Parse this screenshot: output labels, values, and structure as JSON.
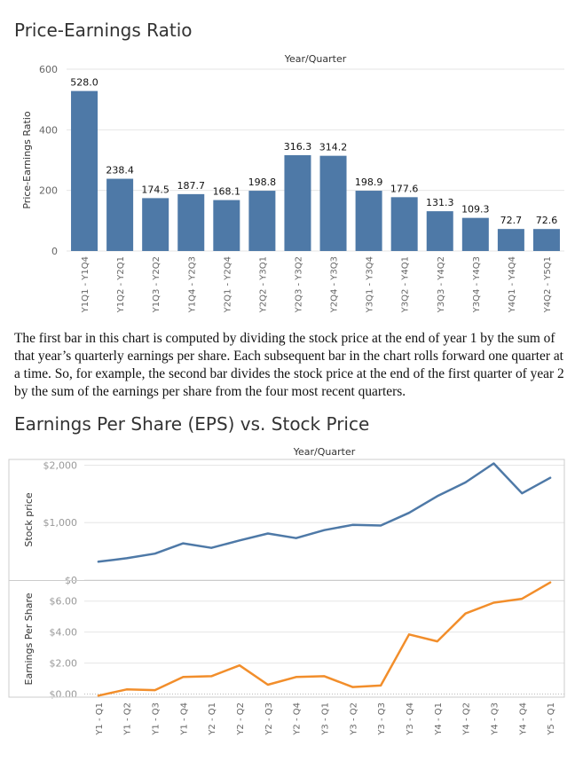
{
  "chart_data": [
    {
      "type": "bar",
      "title": "Price-Earnings Ratio",
      "xlabel": "Year/Quarter",
      "ylabel": "Price-Earnings Ratio",
      "ylim": [
        0,
        600
      ],
      "yticks": [
        "0",
        "200",
        "400",
        "600"
      ],
      "ytick_values": [
        0,
        200,
        400,
        600
      ],
      "grid": true,
      "bar_color": "#4e79a7",
      "categories": [
        "Y1Q1 - Y1Q4",
        "Y1Q2 - Y2Q1",
        "Y1Q3 - Y2Q2",
        "Y1Q4 - Y2Q3",
        "Y2Q1 - Y2Q4",
        "Y2Q2 - Y3Q1",
        "Y2Q3 - Y3Q2",
        "Y2Q4 - Y3Q3",
        "Y3Q1 - Y3Q4",
        "Y3Q2 - Y4Q1",
        "Y3Q3 - Y4Q2",
        "Y3Q4 - Y4Q3",
        "Y4Q1 - Y4Q4",
        "Y4Q2 - Y5Q1"
      ],
      "values": [
        528.0,
        238.4,
        174.5,
        187.7,
        168.1,
        198.8,
        316.3,
        314.2,
        198.9,
        177.6,
        131.3,
        109.3,
        72.7,
        72.6
      ],
      "labels": [
        "528.0",
        "238.4",
        "174.5",
        "187.7",
        "168.1",
        "198.8",
        "316.3",
        "314.2",
        "198.9",
        "177.6",
        "131.3",
        "109.3",
        "72.7",
        "72.6"
      ]
    },
    {
      "type": "line",
      "title": "Earnings Per Share (EPS) vs. Stock Price",
      "xlabel": "Year/Quarter",
      "categories": [
        "Y1 - Q1",
        "Y1 - Q2",
        "Y1 - Q3",
        "Y1 - Q4",
        "Y2 - Q1",
        "Y2 - Q2",
        "Y2 - Q3",
        "Y2 - Q4",
        "Y3 - Q1",
        "Y3 - Q2",
        "Y3 - Q3",
        "Y3 - Q4",
        "Y4 - Q1",
        "Y4 - Q2",
        "Y4 - Q3",
        "Y4 - Q4",
        "Y5 - Q1"
      ],
      "series": [
        {
          "name": "Stock price",
          "ylabel": "Stock price",
          "color": "#4e79a7",
          "ylim": [
            0,
            2100
          ],
          "yticks": [
            "$0",
            "$1,000",
            "$2,000"
          ],
          "ytick_values": [
            0,
            1000,
            2000
          ],
          "values": [
            320,
            380,
            460,
            640,
            560,
            690,
            810,
            730,
            870,
            960,
            950,
            1170,
            1460,
            1700,
            2030,
            1510,
            1780
          ]
        },
        {
          "name": "Earnings Per Share",
          "ylabel": "Earnings Per Share",
          "color": "#f28e2b",
          "ylim": [
            -0.2,
            7.3
          ],
          "yticks": [
            "$0.00",
            "$2.00",
            "$4.00",
            "$6.00"
          ],
          "ytick_values": [
            0,
            2,
            4,
            6
          ],
          "values": [
            -0.1,
            0.3,
            0.25,
            1.1,
            1.15,
            1.85,
            0.6,
            1.1,
            1.15,
            0.45,
            0.55,
            3.85,
            3.4,
            5.2,
            5.9,
            6.15,
            7.2
          ]
        }
      ]
    }
  ],
  "description": "The first bar in this chart is computed by dividing the stock price at the end of year 1 by the sum of that year’s quarterly earnings per share. Each subsequent bar in the chart rolls forward one quarter at a time. So, for example, the second bar divides the stock price at the end of the first quarter of year 2 by the sum of the earnings per share from the four most recent quarters."
}
